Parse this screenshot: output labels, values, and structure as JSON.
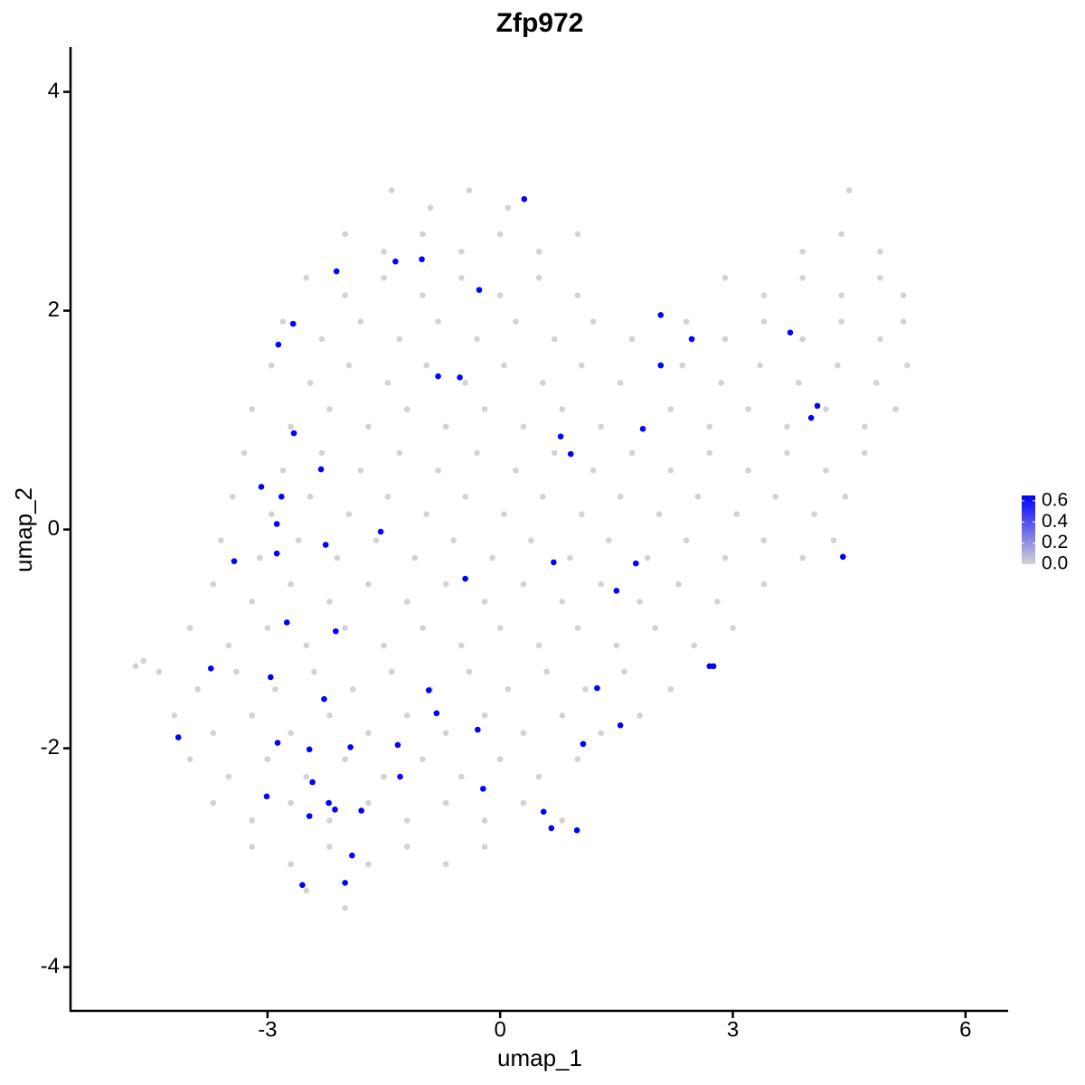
{
  "chart_data": {
    "type": "scatter",
    "title": "Zfp972",
    "xlabel": "umap_1",
    "ylabel": "umap_2",
    "xlim": [
      -5.54,
      6.55
    ],
    "ylim": [
      -4.4,
      4.41
    ],
    "xticks": [
      -3,
      0,
      3,
      6
    ],
    "yticks": [
      -4,
      -2,
      0,
      2,
      4
    ],
    "color_low": "#d3d3d3",
    "color_high": "#0000ff",
    "clim": [
      0,
      0.65
    ],
    "cticks": [
      {
        "value": 0,
        "label": "0.0"
      },
      0.2,
      0.4,
      0.6
    ],
    "x": [
      -1.4,
      -0.9,
      -0.4,
      0.1,
      4.5,
      -2.0,
      -1.5,
      -1.0,
      -0.5,
      0.0,
      0.5,
      1.0,
      3.9,
      4.4,
      4.9,
      -2.5,
      -2.0,
      -1.5,
      -1.0,
      -0.5,
      0.0,
      0.5,
      1.0,
      2.9,
      3.4,
      3.9,
      4.4,
      4.9,
      5.2,
      -2.8,
      -2.3,
      -1.8,
      -1.3,
      -0.8,
      -0.3,
      0.2,
      0.7,
      1.2,
      1.7,
      2.4,
      2.9,
      3.4,
      3.9,
      4.4,
      4.9,
      5.2,
      -2.95,
      -2.45,
      -1.95,
      -1.45,
      -0.95,
      -0.45,
      0.05,
      0.55,
      1.05,
      1.55,
      2.35,
      2.85,
      3.35,
      3.85,
      4.35,
      4.85,
      5.25,
      -3.2,
      -2.7,
      -2.2,
      -1.7,
      -1.2,
      -0.7,
      -0.2,
      0.3,
      0.8,
      1.3,
      2.2,
      2.7,
      3.2,
      3.7,
      4.2,
      4.7,
      5.1,
      -3.3,
      -2.8,
      -2.3,
      -1.8,
      -1.3,
      -0.8,
      -0.3,
      0.2,
      0.7,
      1.2,
      1.7,
      2.2,
      2.7,
      3.2,
      3.7,
      4.2,
      4.7,
      -3.45,
      -2.95,
      -2.45,
      -1.95,
      -1.45,
      -0.95,
      -0.45,
      0.05,
      0.55,
      1.05,
      1.55,
      2.05,
      2.55,
      3.05,
      3.55,
      4.05,
      4.45,
      -3.6,
      -3.1,
      -2.6,
      -2.1,
      -1.6,
      -1.1,
      -0.6,
      -0.1,
      0.4,
      0.9,
      1.4,
      1.9,
      2.4,
      2.9,
      3.4,
      3.9,
      4.3,
      -3.7,
      -3.2,
      -2.7,
      -2.2,
      -1.7,
      -1.2,
      -0.7,
      -0.2,
      0.3,
      0.8,
      1.3,
      1.8,
      2.3,
      2.8,
      3.4,
      -4.0,
      -3.5,
      -3.0,
      -2.5,
      -2.0,
      -1.5,
      -1.0,
      -0.5,
      0.0,
      0.5,
      1.0,
      1.5,
      2.0,
      2.5,
      3.0,
      -4.4,
      -3.9,
      -3.4,
      -2.9,
      -2.4,
      -1.9,
      -1.4,
      -0.9,
      -0.4,
      0.1,
      0.6,
      1.1,
      1.6,
      2.2,
      -4.2,
      -3.7,
      -3.2,
      -2.7,
      -2.2,
      -1.7,
      -1.2,
      -0.7,
      -0.2,
      0.3,
      0.8,
      1.3,
      1.8,
      -4.0,
      -3.5,
      -3.0,
      -2.5,
      -2.0,
      -1.5,
      -1.0,
      -0.5,
      0.0,
      0.5,
      1.0,
      -3.7,
      -3.2,
      -2.7,
      -2.2,
      -1.7,
      -1.2,
      -0.7,
      -0.2,
      0.3,
      0.8,
      -3.2,
      -2.7,
      -2.2,
      -1.7,
      -1.2,
      -0.7,
      -0.2,
      -2.5,
      -2.0,
      -4.7,
      -4.6,
      0.31,
      -2.11,
      -1.35,
      -1.01,
      -0.27,
      -2.67,
      -2.86,
      -0.8,
      -0.52,
      2.07,
      2.47,
      2.07,
      3.74,
      4.09,
      4.01,
      0.78,
      0.91,
      1.84,
      -2.66,
      -2.31,
      -3.08,
      -2.82,
      -2.88,
      -1.54,
      -2.25,
      -2.88,
      -3.43,
      0.69,
      1.75,
      -0.45,
      1.5,
      -2.75,
      -2.12,
      -3.73,
      -2.96,
      2.7,
      2.75,
      -0.92,
      1.25,
      -2.27,
      -0.82,
      1.55,
      -0.29,
      -4.15,
      -2.87,
      -1.32,
      -2.46,
      -1.93,
      1.07,
      -1.29,
      -2.42,
      -0.22,
      -3.01,
      -2.21,
      -2.13,
      -1.79,
      -2.46,
      0.56,
      0.66,
      0.99,
      -1.91,
      -2.0,
      -2.55,
      4.42
    ],
    "values": [
      3.1,
      2.94,
      3.1,
      2.94,
      3.1,
      2.7,
      2.54,
      2.7,
      2.54,
      2.7,
      2.54,
      2.7,
      2.54,
      2.7,
      2.54,
      2.3,
      2.14,
      2.3,
      2.14,
      2.3,
      2.14,
      2.3,
      2.14,
      2.3,
      2.14,
      2.3,
      2.14,
      2.3,
      2.14,
      1.9,
      1.74,
      1.9,
      1.74,
      1.9,
      1.74,
      1.9,
      1.74,
      1.9,
      1.74,
      1.9,
      1.74,
      1.9,
      1.74,
      1.9,
      1.74,
      1.9,
      1.5,
      1.34,
      1.5,
      1.34,
      1.5,
      1.34,
      1.5,
      1.34,
      1.5,
      1.34,
      1.5,
      1.34,
      1.5,
      1.34,
      1.5,
      1.34,
      1.5,
      1.1,
      0.94,
      1.1,
      0.94,
      1.1,
      0.94,
      1.1,
      0.94,
      1.1,
      0.94,
      1.1,
      0.94,
      1.1,
      0.94,
      1.1,
      0.94,
      1.1,
      0.7,
      0.54,
      0.7,
      0.54,
      0.7,
      0.54,
      0.7,
      0.54,
      0.7,
      0.54,
      0.7,
      0.54,
      0.7,
      0.54,
      0.7,
      0.54,
      0.7,
      0.3,
      0.14,
      0.3,
      0.14,
      0.3,
      0.14,
      0.3,
      0.14,
      0.3,
      0.14,
      0.3,
      0.14,
      0.3,
      0.14,
      0.3,
      0.14,
      0.3,
      -0.1,
      -0.26,
      -0.1,
      -0.26,
      -0.1,
      -0.26,
      -0.1,
      -0.26,
      -0.1,
      -0.26,
      -0.1,
      -0.26,
      -0.1,
      -0.26,
      -0.1,
      -0.26,
      -0.1,
      -0.5,
      -0.66,
      -0.5,
      -0.66,
      -0.5,
      -0.66,
      -0.5,
      -0.66,
      -0.5,
      -0.66,
      -0.5,
      -0.66,
      -0.5,
      -0.66,
      -0.5,
      -0.9,
      -1.06,
      -0.9,
      -1.06,
      -0.9,
      -1.06,
      -0.9,
      -1.06,
      -0.9,
      -1.06,
      -0.9,
      -1.06,
      -0.9,
      -1.06,
      -0.9,
      -1.3,
      -1.46,
      -1.3,
      -1.46,
      -1.3,
      -1.46,
      -1.3,
      -1.46,
      -1.3,
      -1.46,
      -1.3,
      -1.46,
      -1.3,
      -1.46,
      -1.7,
      -1.86,
      -1.7,
      -1.86,
      -1.7,
      -1.86,
      -1.7,
      -1.86,
      -1.7,
      -1.86,
      -1.7,
      -1.86,
      -1.7,
      -2.1,
      -2.26,
      -2.1,
      -2.26,
      -2.1,
      -2.26,
      -2.1,
      -2.26,
      -2.1,
      -2.26,
      -2.1,
      -2.5,
      -2.66,
      -2.5,
      -2.66,
      -2.5,
      -2.66,
      -2.5,
      -2.66,
      -2.5,
      -2.66,
      -2.9,
      -3.06,
      -2.9,
      -3.06,
      -2.9,
      -3.06,
      -2.9,
      -3.3,
      -3.46,
      -1.25,
      -1.2,
      3.02,
      2.36,
      2.45,
      2.47,
      2.19,
      1.88,
      1.69,
      1.4,
      1.39,
      1.96,
      1.74,
      1.5,
      1.8,
      1.13,
      1.02,
      0.85,
      0.69,
      0.92,
      0.88,
      0.55,
      0.39,
      0.3,
      0.05,
      -0.02,
      -0.14,
      -0.22,
      -0.29,
      -0.3,
      -0.31,
      -0.45,
      -0.56,
      -0.85,
      -0.93,
      -1.27,
      -1.35,
      -1.25,
      -1.25,
      -1.47,
      -1.45,
      -1.55,
      -1.68,
      -1.79,
      -1.83,
      -1.9,
      -1.95,
      -1.97,
      -2.01,
      -1.99,
      -1.96,
      -2.26,
      -2.31,
      -2.37,
      -2.44,
      -2.5,
      -2.56,
      -2.57,
      -2.62,
      -2.58,
      -2.73,
      -2.75,
      -2.98,
      -3.23,
      -3.25,
      -0.25
    ],
    "expression": [
      0,
      0,
      0,
      0,
      0,
      0,
      0,
      0,
      0,
      0,
      0,
      0,
      0,
      0,
      0,
      0,
      0,
      0,
      0,
      0,
      0,
      0,
      0,
      0,
      0,
      0,
      0,
      0,
      0,
      0,
      0,
      0,
      0,
      0,
      0,
      0,
      0,
      0,
      0,
      0,
      0,
      0,
      0,
      0,
      0,
      0,
      0,
      0,
      0,
      0,
      0,
      0,
      0,
      0,
      0,
      0,
      0,
      0,
      0,
      0,
      0,
      0,
      0,
      0,
      0,
      0,
      0,
      0,
      0,
      0,
      0,
      0,
      0,
      0,
      0,
      0,
      0,
      0,
      0,
      0,
      0,
      0,
      0,
      0,
      0,
      0,
      0,
      0,
      0,
      0,
      0,
      0,
      0,
      0,
      0,
      0,
      0,
      0,
      0,
      0,
      0,
      0,
      0,
      0,
      0,
      0,
      0,
      0,
      0,
      0,
      0,
      0,
      0,
      0,
      0,
      0,
      0,
      0,
      0,
      0,
      0,
      0,
      0,
      0,
      0,
      0,
      0,
      0,
      0,
      0,
      0,
      0,
      0,
      0,
      0,
      0,
      0,
      0,
      0,
      0,
      0,
      0,
      0,
      0,
      0,
      0,
      0,
      0,
      0,
      0,
      0,
      0,
      0,
      0,
      0,
      0,
      0,
      0,
      0,
      0,
      0,
      0,
      0,
      0,
      0,
      0,
      0,
      0,
      0,
      0,
      0,
      0,
      0,
      0,
      0,
      0,
      0,
      0,
      0,
      0,
      0,
      0,
      0,
      0,
      0,
      0,
      0,
      0,
      0,
      0,
      0,
      0,
      0,
      0,
      0,
      0,
      0,
      0,
      0,
      0,
      0,
      0,
      0,
      0,
      0,
      0,
      0,
      0,
      0,
      0,
      0,
      0,
      0,
      0,
      0,
      0,
      0,
      0,
      0,
      0,
      0.65,
      0.65,
      0.65,
      0.65,
      0.65,
      0.65,
      0.65,
      0.65,
      0.65,
      0.65,
      0.65,
      0.65,
      0.65,
      0.65,
      0.65,
      0.65,
      0.65,
      0.65,
      0.65,
      0.65,
      0.65,
      0.65,
      0.65,
      0.65,
      0.65,
      0.65,
      0.65,
      0.65,
      0.65,
      0.65,
      0.65,
      0.65,
      0.65,
      0.65,
      0.65,
      0.65,
      0.65,
      0.65,
      0.65,
      0.65,
      0.65,
      0.65,
      0.65,
      0.65,
      0.65,
      0.65,
      0.65,
      0.65,
      0.65,
      0.65,
      0.65,
      0.65,
      0.65,
      0.65,
      0.65,
      0.65,
      0.65,
      0.65,
      0.65,
      0.65,
      0.65,
      0.65,
      0.65,
      0.65
    ]
  }
}
